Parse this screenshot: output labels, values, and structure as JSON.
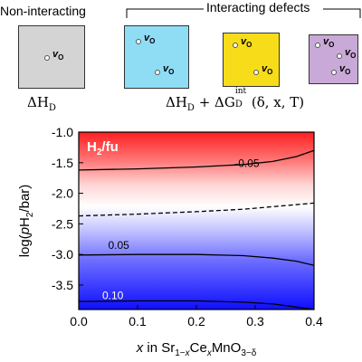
{
  "header": {
    "non_interacting_label": "Non-interacting",
    "interacting_label": "Interacting defects",
    "vacancy_symbol": "v",
    "vacancy_subscript": "O",
    "formula_left": "ΔH",
    "formula_left_sub": "D",
    "formula_right_a": "ΔH",
    "formula_right_a_sub": "D",
    "formula_right_plus": " + ΔG",
    "formula_right_sup": "int",
    "formula_right_sub": "D",
    "formula_right_args": "(δ, x, T)"
  },
  "panels": [
    {
      "name": "non-interacting",
      "color": "#d4d4d4"
    },
    {
      "name": "interacting-1",
      "color": "#8fdcf5"
    },
    {
      "name": "interacting-2",
      "color": "#f7dc1a"
    },
    {
      "name": "interacting-3",
      "color": "#c9a9d8"
    }
  ],
  "chart_data": {
    "type": "heatmap",
    "title": "H2/fu",
    "xlabel": "x in Sr1−xCexMnO3−δ",
    "ylabel": "log(pH2/bar)",
    "xlim": [
      0.0,
      0.4
    ],
    "ylim": [
      -3.9,
      -1.0
    ],
    "x_ticks": [
      "0.0",
      "0.1",
      "0.2",
      "0.3",
      "0.4"
    ],
    "y_ticks": [
      "-1.0",
      "-1.5",
      "-2.0",
      "-2.5",
      "-3.0",
      "-3.5"
    ],
    "colormap": {
      "positive": "#1a1aff",
      "zero": "#ffffff",
      "negative": "#ff1a1a"
    },
    "contours": [
      {
        "level": -0.05,
        "label": "-0.05",
        "style": "solid",
        "points": [
          [
            0.0,
            -1.62
          ],
          [
            0.1,
            -1.6
          ],
          [
            0.2,
            -1.57
          ],
          [
            0.28,
            -1.53
          ],
          [
            0.33,
            -1.48
          ],
          [
            0.37,
            -1.4
          ],
          [
            0.4,
            -1.3
          ]
        ]
      },
      {
        "level": 0.0,
        "style": "dashed",
        "points": [
          [
            0.0,
            -2.37
          ],
          [
            0.1,
            -2.34
          ],
          [
            0.2,
            -2.3
          ],
          [
            0.28,
            -2.26
          ],
          [
            0.34,
            -2.21
          ],
          [
            0.4,
            -2.16
          ]
        ]
      },
      {
        "level": 0.05,
        "label": "0.05",
        "style": "solid",
        "points": [
          [
            0.0,
            -3.01
          ],
          [
            0.1,
            -3.0
          ],
          [
            0.2,
            -3.0
          ],
          [
            0.28,
            -3.02
          ],
          [
            0.33,
            -3.06
          ],
          [
            0.37,
            -3.11
          ],
          [
            0.4,
            -3.18
          ]
        ]
      },
      {
        "level": 0.1,
        "label": "0.10",
        "style": "solid",
        "points": [
          [
            0.0,
            -3.77
          ],
          [
            0.1,
            -3.76
          ],
          [
            0.2,
            -3.76
          ],
          [
            0.28,
            -3.78
          ],
          [
            0.33,
            -3.81
          ],
          [
            0.37,
            -3.86
          ],
          [
            0.4,
            -3.9
          ]
        ]
      }
    ]
  }
}
